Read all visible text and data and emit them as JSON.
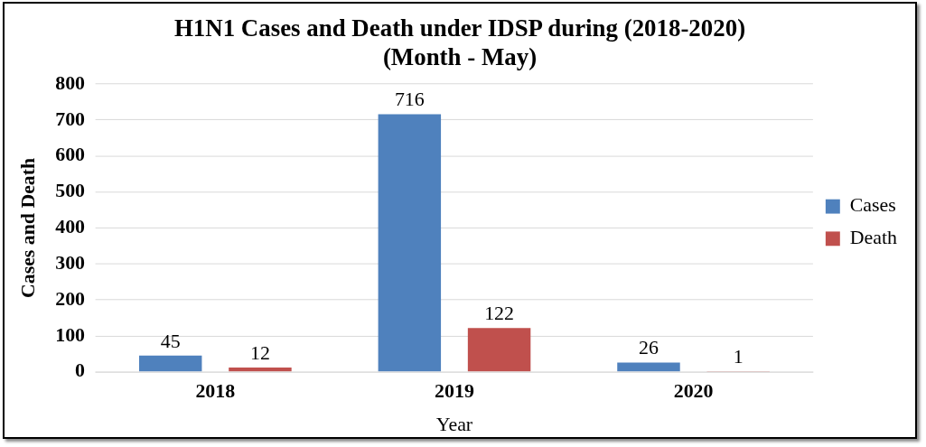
{
  "chart_data": {
    "type": "bar",
    "title": "H1N1 Cases and Death under IDSP during (2018-2020)",
    "subtitle": "(Month - May)",
    "xlabel": "Year",
    "ylabel": "Cases and Death",
    "categories": [
      "2018",
      "2019",
      "2020"
    ],
    "series": [
      {
        "name": "Cases",
        "color": "#4f81bd",
        "values": [
          45,
          716,
          26
        ]
      },
      {
        "name": "Death",
        "color": "#c0504d",
        "values": [
          12,
          122,
          1
        ]
      }
    ],
    "ylim": [
      0,
      800
    ],
    "yticks": [
      0,
      100,
      200,
      300,
      400,
      500,
      600,
      700,
      800
    ],
    "grid": "y",
    "legend": "right",
    "data_labels": true
  }
}
